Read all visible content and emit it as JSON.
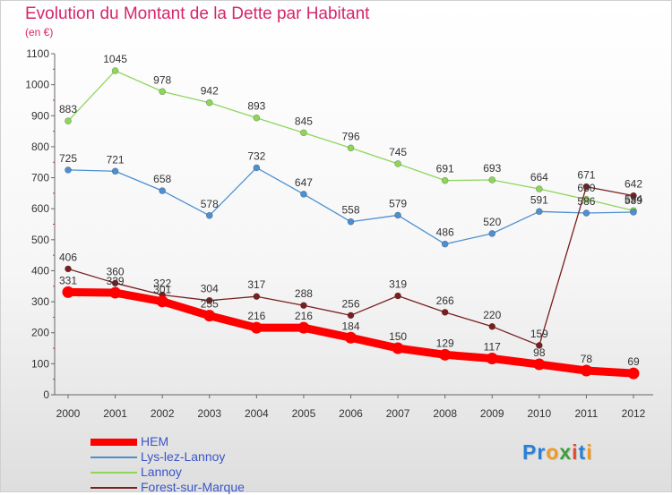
{
  "title": "Evolution du Montant de la Dette par Habitant",
  "unit_label": "(en €)",
  "logo": {
    "text": "Proxiti",
    "letters": [
      {
        "ch": "P",
        "color": "#2a7fd6"
      },
      {
        "ch": "r",
        "color": "#2a7fd6"
      },
      {
        "ch": "o",
        "color": "#f39a1e"
      },
      {
        "ch": "x",
        "color": "#3f9d3a"
      },
      {
        "ch": "i",
        "color": "#e34a2c"
      },
      {
        "ch": "t",
        "color": "#2a7fd6"
      },
      {
        "ch": "i",
        "color": "#f39a1e"
      }
    ]
  },
  "chart_data": {
    "type": "line",
    "title": "Evolution du Montant de la Dette par Habitant",
    "ylabel": "(en €)",
    "xlabel": "",
    "x": [
      "2000",
      "2001",
      "2002",
      "2003",
      "2004",
      "2005",
      "2006",
      "2007",
      "2008",
      "2009",
      "2010",
      "2011",
      "2012"
    ],
    "ylim": [
      0,
      1100
    ],
    "yticks": [
      0,
      100,
      200,
      300,
      400,
      500,
      600,
      700,
      800,
      900,
      1000,
      1100
    ],
    "grid": false,
    "legend_position": "bottom-left",
    "series": [
      {
        "name": "HEM",
        "color": "#ff0000",
        "values": [
          331,
          329,
          301,
          255,
          216,
          216,
          184,
          150,
          129,
          117,
          98,
          78,
          69
        ]
      },
      {
        "name": "Lys-lez-Lannoy",
        "color": "#4d8fd0",
        "values": [
          725,
          721,
          658,
          578,
          732,
          647,
          558,
          579,
          486,
          520,
          591,
          586,
          589
        ]
      },
      {
        "name": "Lannoy",
        "color": "#8ed65a",
        "values": [
          883,
          1045,
          978,
          942,
          893,
          845,
          796,
          745,
          691,
          693,
          664,
          630,
          594
        ]
      },
      {
        "name": "Forest-sur-Marque",
        "color": "#7a1f1f",
        "values": [
          406,
          360,
          322,
          304,
          317,
          288,
          256,
          319,
          266,
          220,
          159,
          671,
          642
        ]
      }
    ]
  }
}
